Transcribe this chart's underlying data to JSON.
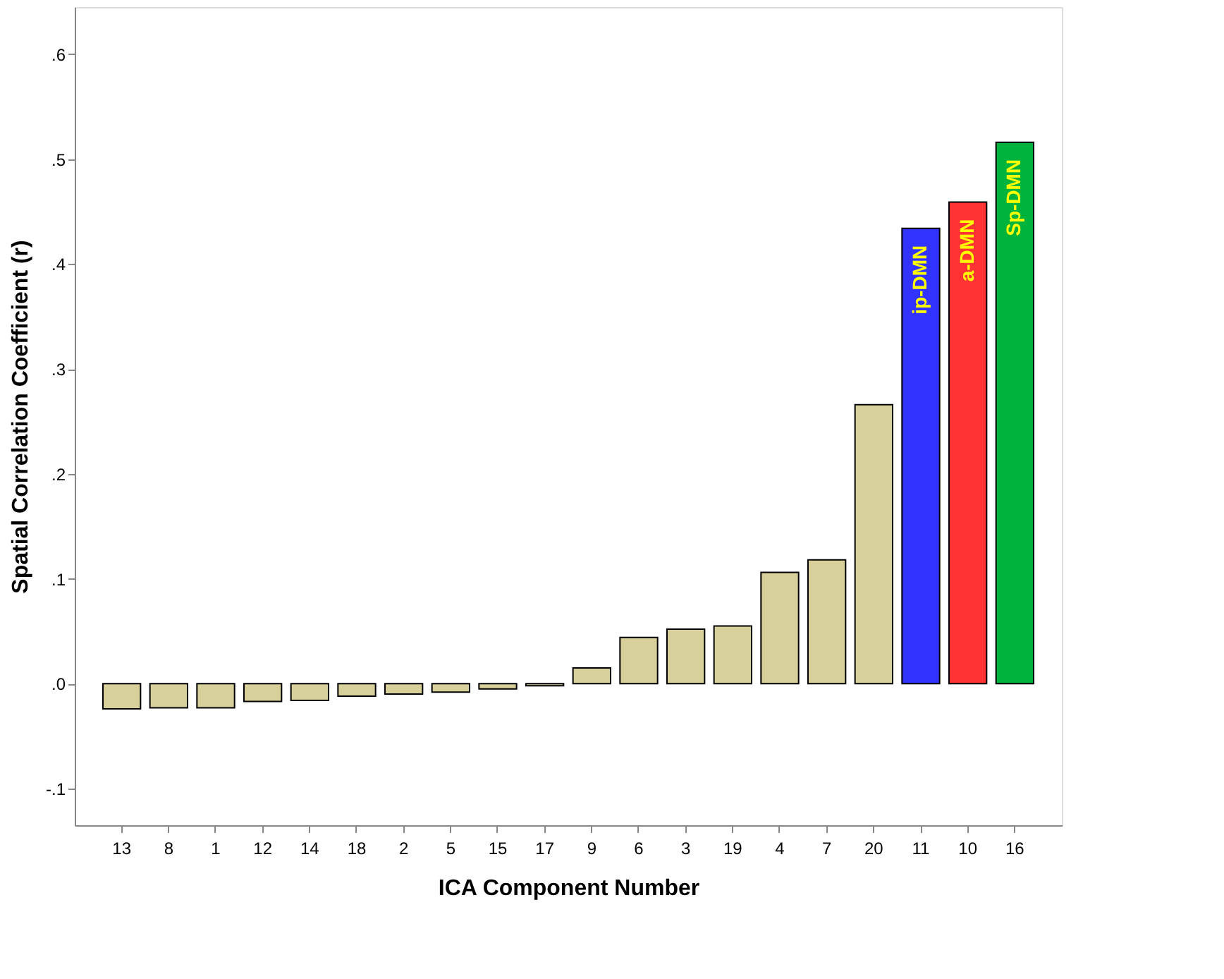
{
  "chart_data": {
    "type": "bar",
    "xlabel": "ICA Component Number",
    "ylabel": "Spatial Correlation Coefficient (r)",
    "categories": [
      "13",
      "8",
      "1",
      "12",
      "14",
      "18",
      "2",
      "5",
      "15",
      "17",
      "9",
      "6",
      "3",
      "19",
      "4",
      "7",
      "20",
      "11",
      "10",
      "16"
    ],
    "values": [
      -0.024,
      -0.023,
      -0.023,
      -0.017,
      -0.016,
      -0.012,
      -0.01,
      -0.008,
      -0.005,
      -0.002,
      0.015,
      0.044,
      0.052,
      0.055,
      0.106,
      0.118,
      0.266,
      0.434,
      0.459,
      0.516
    ],
    "colors": [
      "#d8d09a",
      "#d8d09a",
      "#d8d09a",
      "#d8d09a",
      "#d8d09a",
      "#d8d09a",
      "#d8d09a",
      "#d8d09a",
      "#d8d09a",
      "#d8d09a",
      "#d8d09a",
      "#d8d09a",
      "#d8d09a",
      "#d8d09a",
      "#d8d09a",
      "#d8d09a",
      "#d8d09a",
      "#3333ff",
      "#ff3333",
      "#00b33c"
    ],
    "ylim": [
      -0.135,
      0.645
    ],
    "yticks": [
      {
        "value": -0.1,
        "label": "-.1"
      },
      {
        "value": 0,
        "label": ".0"
      },
      {
        "value": 0.1,
        "label": ".1"
      },
      {
        "value": 0.2,
        "label": ".2"
      },
      {
        "value": 0.3,
        "label": ".3"
      },
      {
        "value": 0.4,
        "label": ".4"
      },
      {
        "value": 0.5,
        "label": ".5"
      },
      {
        "value": 0.6,
        "label": ".6"
      }
    ],
    "annotations": [
      "ip-DMN",
      "a-DMN",
      "Sp-DMN"
    ],
    "grid": false
  }
}
